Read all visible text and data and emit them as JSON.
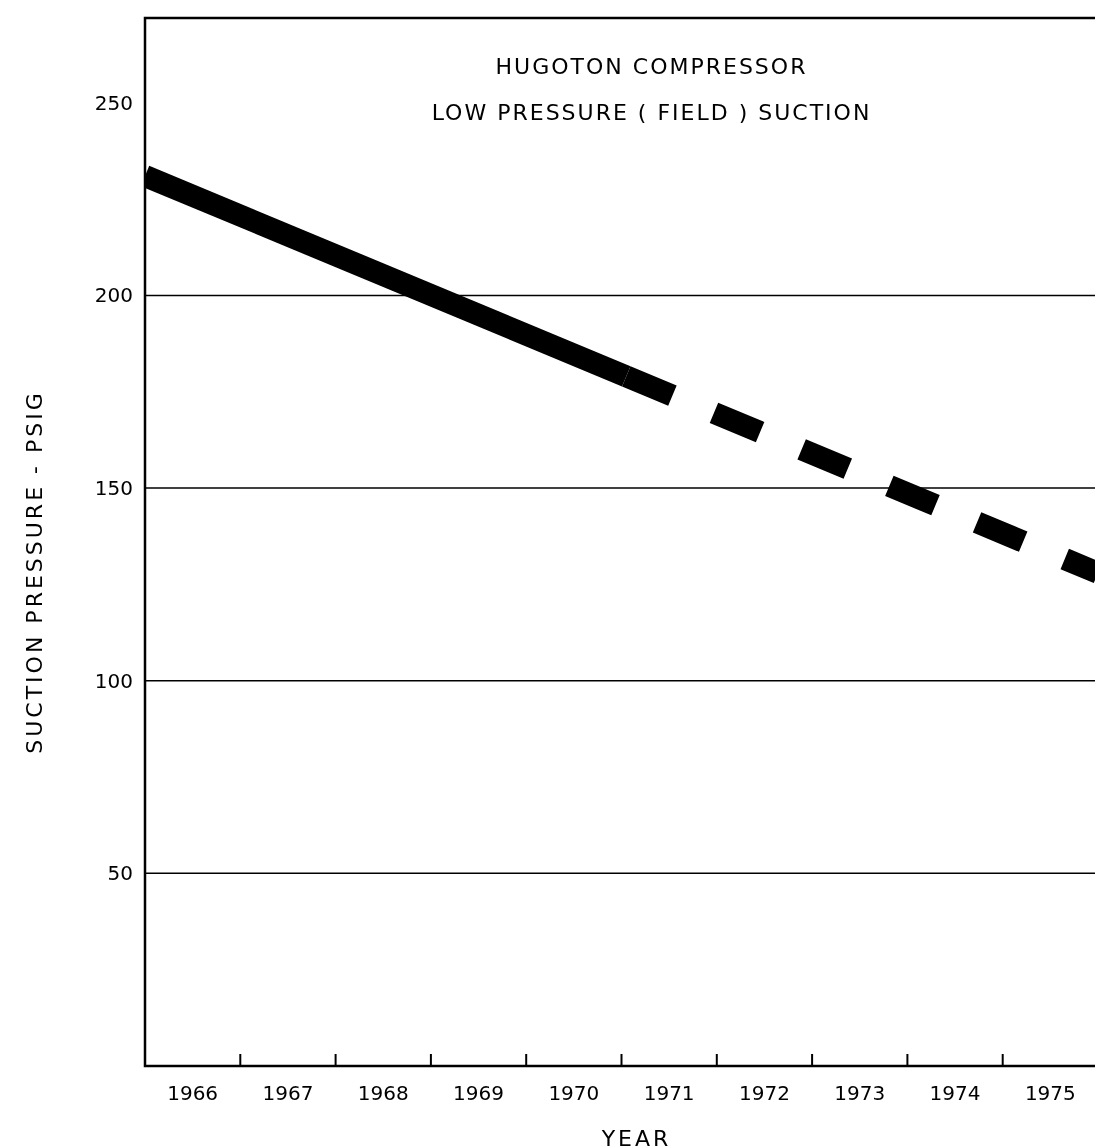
{
  "chart_data": {
    "type": "line",
    "title": "HUGOTON COMPRESSOR",
    "subtitle": "LOW PRESSURE ( FIELD ) SUCTION",
    "xlabel": "YEAR",
    "ylabel": "SUCTION  PRESSURE  -  PSIG",
    "xlim": [
      1966,
      1976
    ],
    "xticks": [
      {
        "value": 1966,
        "label": null
      },
      {
        "value": 1966.5,
        "label": "1966"
      },
      {
        "value": 1967,
        "label": null
      },
      {
        "value": 1967.5,
        "label": "1967"
      },
      {
        "value": 1968,
        "label": null
      },
      {
        "value": 1968.5,
        "label": "1968"
      },
      {
        "value": 1969,
        "label": null
      },
      {
        "value": 1969.5,
        "label": "1969"
      },
      {
        "value": 1970,
        "label": null
      },
      {
        "value": 1970.5,
        "label": "1970"
      },
      {
        "value": 1971,
        "label": null
      },
      {
        "value": 1971.5,
        "label": "1971"
      },
      {
        "value": 1972,
        "label": null
      },
      {
        "value": 1972.5,
        "label": "1972"
      },
      {
        "value": 1973,
        "label": null
      },
      {
        "value": 1973.5,
        "label": "1973"
      },
      {
        "value": 1974,
        "label": null
      },
      {
        "value": 1974.5,
        "label": "1974"
      },
      {
        "value": 1975,
        "label": null
      },
      {
        "value": 1975.5,
        "label": "1975"
      },
      {
        "value": 1976,
        "label": null
      }
    ],
    "ylim": [
      0,
      272
    ],
    "yticks": [
      50,
      100,
      150,
      200,
      250
    ],
    "ref_lines": [
      {
        "axis": "y",
        "value": 50
      },
      {
        "axis": "y",
        "value": 100
      },
      {
        "axis": "y",
        "value": 150
      },
      {
        "axis": "y",
        "value": 200
      }
    ],
    "series": [
      {
        "color": "#000000",
        "line_style": "solid",
        "x": [
          1966,
          1971.05
        ],
        "values": [
          231,
          179
        ]
      },
      {
        "color": "#000000",
        "line_style": "dashed",
        "x": [
          1971.05,
          1976
        ],
        "values": [
          179,
          128
        ]
      }
    ]
  }
}
